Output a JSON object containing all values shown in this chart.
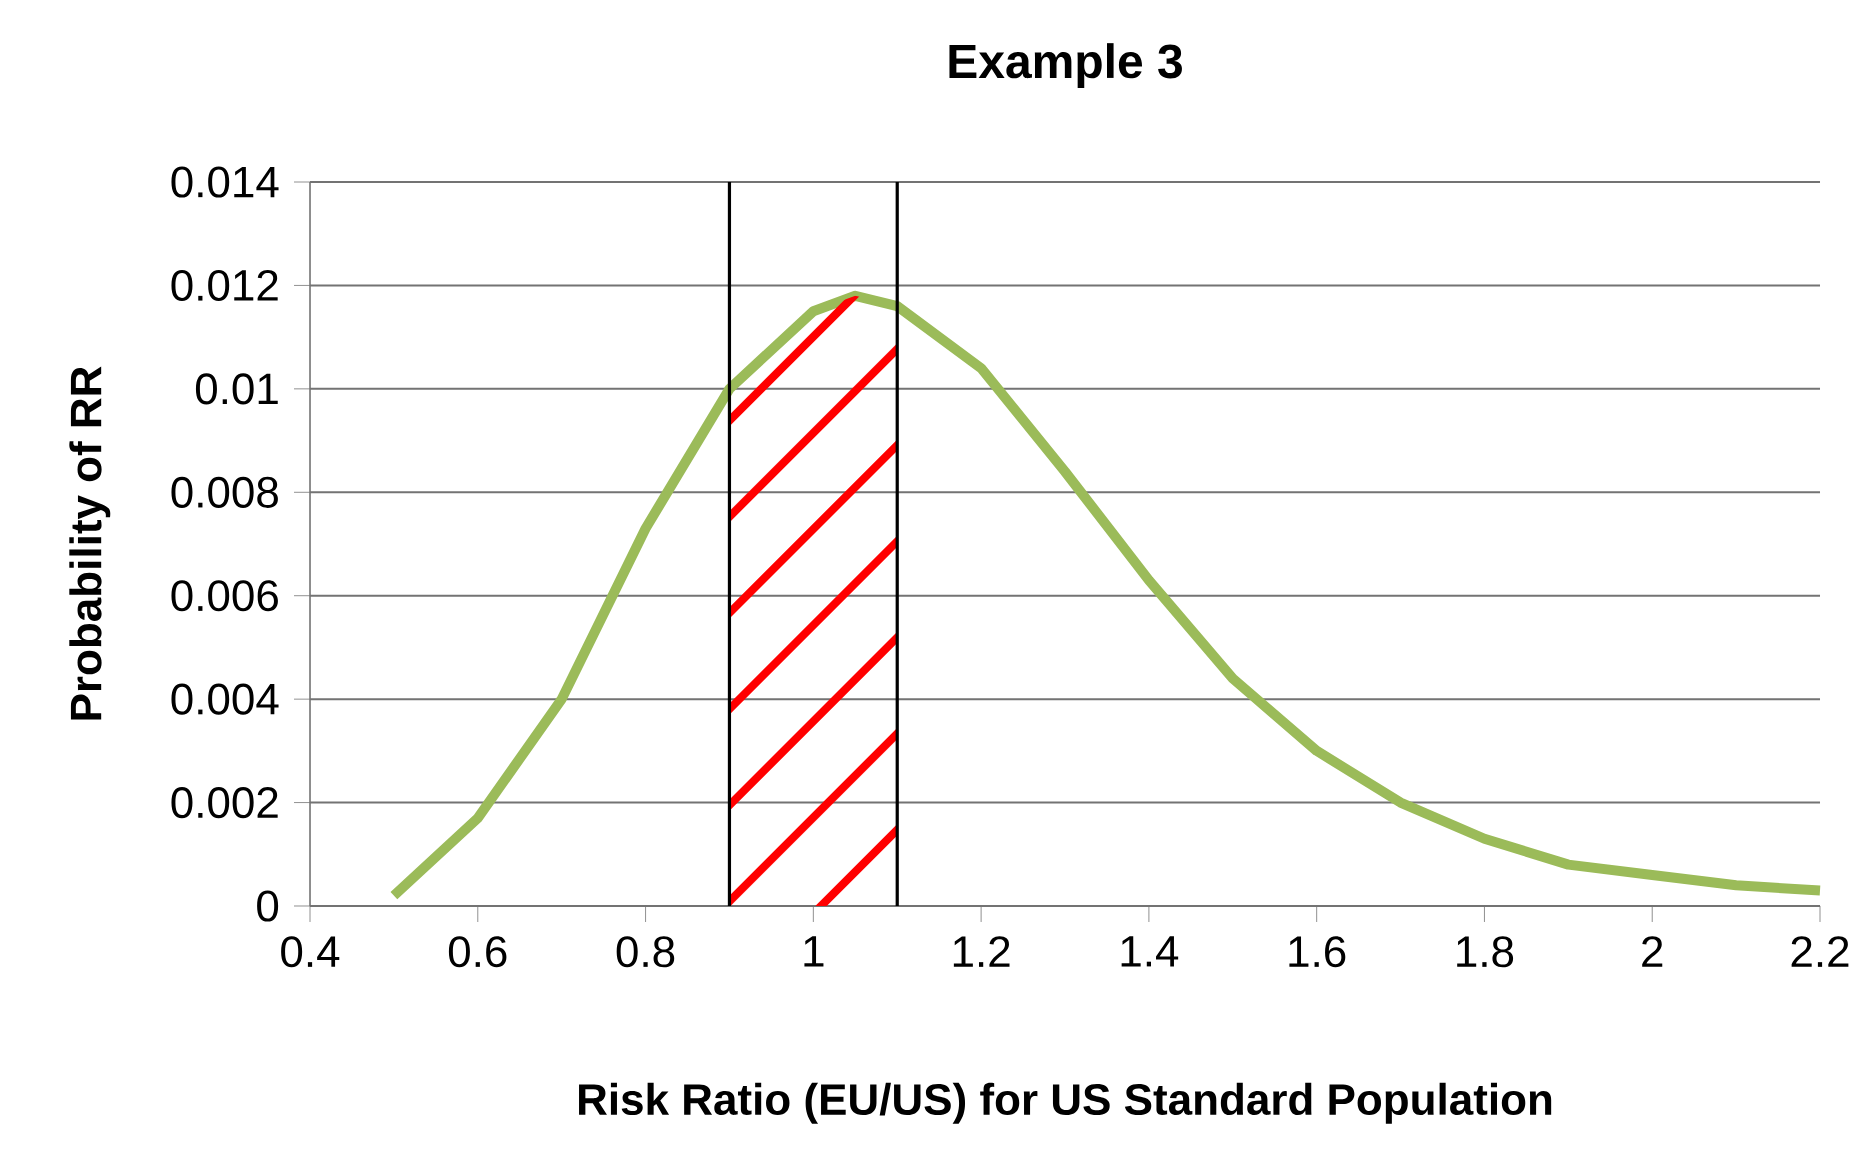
{
  "chart_data": {
    "type": "line",
    "title": "Example 3",
    "xlabel": "Risk Ratio (EU/US) for US Standard Population",
    "ylabel": "Probability of RR",
    "xlim": [
      0.4,
      2.2
    ],
    "xticks": [
      0.4,
      0.6,
      0.8,
      1,
      1.2,
      1.4,
      1.6,
      1.8,
      2,
      2.2
    ],
    "ylim": [
      0,
      0.014
    ],
    "yticks": [
      0,
      0.002,
      0.004,
      0.006,
      0.008,
      0.01,
      0.012,
      0.014
    ],
    "grid": "y",
    "series": [
      {
        "color": "#9bbb59",
        "x": [
          0.5,
          0.6,
          0.7,
          0.8,
          0.9,
          1.0,
          1.05,
          1.1,
          1.2,
          1.3,
          1.4,
          1.5,
          1.6,
          1.7,
          1.8,
          1.9,
          2.0,
          2.1,
          2.2
        ],
        "values": [
          0.0002,
          0.0017,
          0.004,
          0.0073,
          0.01,
          0.0115,
          0.0118,
          0.0116,
          0.0104,
          0.0084,
          0.0063,
          0.0044,
          0.003,
          0.002,
          0.0013,
          0.0008,
          0.0006,
          0.0004,
          0.0003
        ]
      }
    ],
    "ref_lines": [
      {
        "axis": "x",
        "value": 0.9,
        "color": "#000000"
      },
      {
        "axis": "x",
        "value": 1.1,
        "color": "#000000"
      }
    ],
    "bands": [
      {
        "axis": "x",
        "from": 0.9,
        "to": 1.1,
        "color": "#ff0000"
      }
    ]
  }
}
